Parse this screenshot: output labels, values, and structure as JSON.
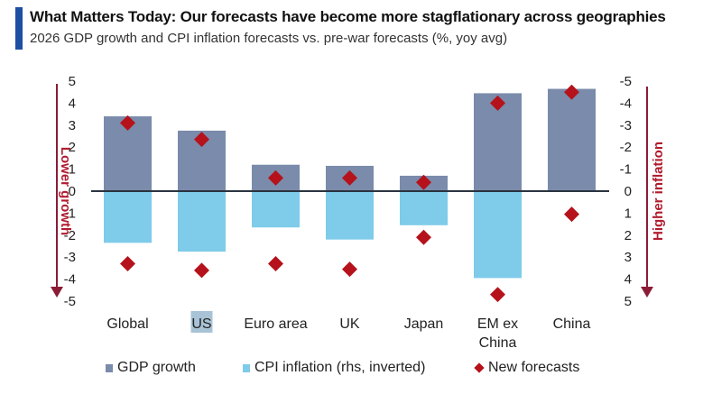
{
  "header": {
    "title": "What Matters Today: Our forecasts have become more stagflationary across geographies",
    "subtitle": "2026 GDP growth and CPI inflation forecasts vs. pre-war forecasts (%, yoy avg)"
  },
  "colors": {
    "accent": "#1e4fa0",
    "gdp": "#7a8bab",
    "cpi": "#7ecbea",
    "new_forecast": "#b5121b",
    "arrow": "#8c1c36",
    "zero_line": "#2a3440"
  },
  "chart_data": {
    "type": "bar",
    "title": "What Matters Today: Our forecasts have become more stagflationary across geographies",
    "subtitle": "2026 GDP growth and CPI inflation forecasts vs. pre-war forecasts (%, yoy avg)",
    "categories": [
      "Global",
      "US",
      "Euro area",
      "UK",
      "Japan",
      "EM ex China",
      "China"
    ],
    "highlighted_category": "US",
    "series": [
      {
        "name": "GDP growth",
        "axis": "left",
        "values": [
          3.4,
          2.75,
          1.2,
          1.15,
          0.7,
          4.45,
          4.65
        ]
      },
      {
        "name": "CPI inflation (rhs, inverted)",
        "axis": "right-inverted",
        "values": [
          2.35,
          2.75,
          1.65,
          2.2,
          1.55,
          3.95,
          0.0
        ]
      },
      {
        "name": "New forecasts (GDP)",
        "axis": "left",
        "marker": "diamond",
        "values": [
          3.1,
          2.35,
          0.6,
          0.6,
          0.4,
          4.0,
          4.5
        ]
      },
      {
        "name": "New forecasts (CPI)",
        "axis": "right-inverted",
        "marker": "diamond",
        "values": [
          3.3,
          3.6,
          3.3,
          3.55,
          2.1,
          4.7,
          1.05
        ]
      }
    ],
    "left_axis": {
      "label": "Lower growth",
      "ylim": [
        -5,
        5
      ],
      "ticks": [
        "5",
        "4",
        "3",
        "2",
        "1",
        "0",
        "-1",
        "-2",
        "-3",
        "-4",
        "-5"
      ]
    },
    "right_axis": {
      "label": "Higher inflation",
      "ylim": [
        5,
        -5
      ],
      "inverted": true,
      "ticks": [
        "-5",
        "-4",
        "-3",
        "-2",
        "-1",
        "0",
        "1",
        "2",
        "3",
        "4",
        "5"
      ]
    },
    "legend": {
      "placement": "bottom",
      "items": [
        {
          "label": "GDP growth",
          "marker": "square"
        },
        {
          "label": "CPI inflation (rhs, inverted)",
          "marker": "square"
        },
        {
          "label": "New forecasts",
          "marker": "diamond"
        }
      ]
    },
    "grid": false
  }
}
